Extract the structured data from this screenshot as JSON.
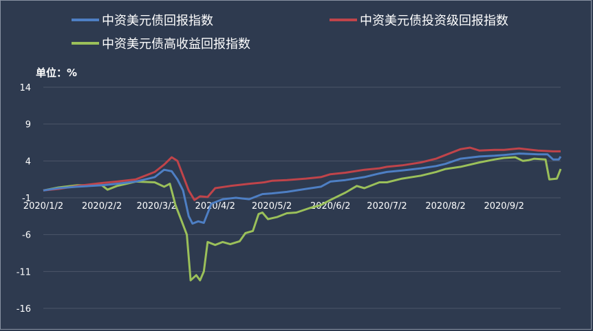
{
  "chart_data": {
    "type": "line",
    "unit_label": "单位：%",
    "ylim": [
      -16,
      14
    ],
    "yticks": [
      "14",
      "9",
      "4",
      "-1",
      "-6",
      "-11",
      "-16"
    ],
    "xtick_labels": [
      "2020/1/2",
      "2020/2/2",
      "2020/3/2",
      "2020/4/2",
      "2020/5/2",
      "2020/6/2",
      "2020/7/2",
      "2020/8/2",
      "2020/9/2"
    ],
    "grid": true,
    "legend_position": "top",
    "series": [
      {
        "name": "中资美元债回报指数",
        "color": "#4e7fc4",
        "points": [
          [
            "2020-01-02",
            0.0
          ],
          [
            "2020-01-10",
            0.3
          ],
          [
            "2020-01-20",
            0.5
          ],
          [
            "2020-02-02",
            0.7
          ],
          [
            "2020-02-10",
            0.9
          ],
          [
            "2020-02-20",
            1.2
          ],
          [
            "2020-03-01",
            1.8
          ],
          [
            "2020-03-06",
            2.8
          ],
          [
            "2020-03-10",
            2.6
          ],
          [
            "2020-03-13",
            1.5
          ],
          [
            "2020-03-16",
            0.0
          ],
          [
            "2020-03-19",
            -3.5
          ],
          [
            "2020-03-21",
            -4.5
          ],
          [
            "2020-03-24",
            -4.2
          ],
          [
            "2020-03-27",
            -4.4
          ],
          [
            "2020-03-31",
            -1.8
          ],
          [
            "2020-04-06",
            -1.2
          ],
          [
            "2020-04-13",
            -1.0
          ],
          [
            "2020-04-20",
            -1.2
          ],
          [
            "2020-04-27",
            -0.5
          ],
          [
            "2020-05-02",
            -0.4
          ],
          [
            "2020-05-10",
            -0.2
          ],
          [
            "2020-05-20",
            0.2
          ],
          [
            "2020-05-28",
            0.5
          ],
          [
            "2020-06-02",
            1.2
          ],
          [
            "2020-06-10",
            1.4
          ],
          [
            "2020-06-20",
            1.8
          ],
          [
            "2020-06-28",
            2.3
          ],
          [
            "2020-07-02",
            2.5
          ],
          [
            "2020-07-10",
            2.7
          ],
          [
            "2020-07-20",
            3.0
          ],
          [
            "2020-07-28",
            3.3
          ],
          [
            "2020-08-02",
            3.6
          ],
          [
            "2020-08-10",
            4.3
          ],
          [
            "2020-08-20",
            4.6
          ],
          [
            "2020-08-28",
            4.7
          ],
          [
            "2020-09-02",
            4.8
          ],
          [
            "2020-09-10",
            5.0
          ],
          [
            "2020-09-20",
            4.9
          ],
          [
            "2020-09-25",
            4.9
          ],
          [
            "2020-09-28",
            4.2
          ],
          [
            "2020-10-01",
            4.2
          ],
          [
            "2020-10-02",
            4.6
          ]
        ]
      },
      {
        "name": "中资美元债投资级回报指数",
        "color": "#c0444a",
        "points": [
          [
            "2020-01-02",
            0.0
          ],
          [
            "2020-01-10",
            0.2
          ],
          [
            "2020-01-20",
            0.6
          ],
          [
            "2020-02-02",
            1.0
          ],
          [
            "2020-02-10",
            1.2
          ],
          [
            "2020-02-20",
            1.5
          ],
          [
            "2020-03-01",
            2.5
          ],
          [
            "2020-03-06",
            3.5
          ],
          [
            "2020-03-10",
            4.5
          ],
          [
            "2020-03-13",
            4.0
          ],
          [
            "2020-03-16",
            2.0
          ],
          [
            "2020-03-19",
            0.0
          ],
          [
            "2020-03-22",
            -1.3
          ],
          [
            "2020-03-25",
            -0.8
          ],
          [
            "2020-03-29",
            -0.9
          ],
          [
            "2020-04-02",
            0.3
          ],
          [
            "2020-04-10",
            0.6
          ],
          [
            "2020-04-20",
            0.9
          ],
          [
            "2020-04-28",
            1.1
          ],
          [
            "2020-05-02",
            1.3
          ],
          [
            "2020-05-10",
            1.4
          ],
          [
            "2020-05-20",
            1.6
          ],
          [
            "2020-05-28",
            1.8
          ],
          [
            "2020-06-02",
            2.2
          ],
          [
            "2020-06-10",
            2.4
          ],
          [
            "2020-06-20",
            2.8
          ],
          [
            "2020-06-28",
            3.0
          ],
          [
            "2020-07-02",
            3.2
          ],
          [
            "2020-07-10",
            3.4
          ],
          [
            "2020-07-20",
            3.8
          ],
          [
            "2020-07-28",
            4.3
          ],
          [
            "2020-08-02",
            4.8
          ],
          [
            "2020-08-10",
            5.6
          ],
          [
            "2020-08-15",
            5.8
          ],
          [
            "2020-08-20",
            5.4
          ],
          [
            "2020-08-28",
            5.5
          ],
          [
            "2020-09-02",
            5.5
          ],
          [
            "2020-09-10",
            5.7
          ],
          [
            "2020-09-20",
            5.4
          ],
          [
            "2020-09-28",
            5.3
          ],
          [
            "2020-10-02",
            5.3
          ]
        ]
      },
      {
        "name": "中资美元债高收益回报指数",
        "color": "#9bc05a",
        "points": [
          [
            "2020-01-02",
            0.0
          ],
          [
            "2020-01-10",
            0.4
          ],
          [
            "2020-01-20",
            0.7
          ],
          [
            "2020-02-02",
            0.7
          ],
          [
            "2020-02-05",
            0.1
          ],
          [
            "2020-02-10",
            0.6
          ],
          [
            "2020-02-20",
            1.2
          ],
          [
            "2020-03-01",
            1.1
          ],
          [
            "2020-03-06",
            0.5
          ],
          [
            "2020-03-09",
            0.9
          ],
          [
            "2020-03-12",
            -2.0
          ],
          [
            "2020-03-15",
            -4.0
          ],
          [
            "2020-03-18",
            -6.0
          ],
          [
            "2020-03-20",
            -12.2
          ],
          [
            "2020-03-23",
            -11.5
          ],
          [
            "2020-03-25",
            -12.2
          ],
          [
            "2020-03-27",
            -11.0
          ],
          [
            "2020-03-29",
            -7.0
          ],
          [
            "2020-04-02",
            -7.4
          ],
          [
            "2020-04-06",
            -7.0
          ],
          [
            "2020-04-10",
            -7.3
          ],
          [
            "2020-04-15",
            -6.9
          ],
          [
            "2020-04-18",
            -5.8
          ],
          [
            "2020-04-22",
            -5.5
          ],
          [
            "2020-04-25",
            -3.2
          ],
          [
            "2020-04-27",
            -3.0
          ],
          [
            "2020-04-30",
            -3.9
          ],
          [
            "2020-05-05",
            -3.6
          ],
          [
            "2020-05-10",
            -3.1
          ],
          [
            "2020-05-15",
            -3.0
          ],
          [
            "2020-05-22",
            -2.4
          ],
          [
            "2020-05-28",
            -2.0
          ],
          [
            "2020-06-02",
            -1.3
          ],
          [
            "2020-06-10",
            -0.3
          ],
          [
            "2020-06-16",
            0.6
          ],
          [
            "2020-06-20",
            0.3
          ],
          [
            "2020-06-28",
            1.1
          ],
          [
            "2020-07-02",
            1.1
          ],
          [
            "2020-07-10",
            1.6
          ],
          [
            "2020-07-20",
            2.0
          ],
          [
            "2020-07-28",
            2.5
          ],
          [
            "2020-08-02",
            2.9
          ],
          [
            "2020-08-10",
            3.2
          ],
          [
            "2020-08-20",
            3.8
          ],
          [
            "2020-08-28",
            4.2
          ],
          [
            "2020-09-02",
            4.4
          ],
          [
            "2020-09-08",
            4.5
          ],
          [
            "2020-09-12",
            4.0
          ],
          [
            "2020-09-15",
            4.1
          ],
          [
            "2020-09-18",
            4.3
          ],
          [
            "2020-09-24",
            4.2
          ],
          [
            "2020-09-26",
            1.5
          ],
          [
            "2020-09-30",
            1.6
          ],
          [
            "2020-10-02",
            2.9
          ]
        ]
      }
    ]
  }
}
